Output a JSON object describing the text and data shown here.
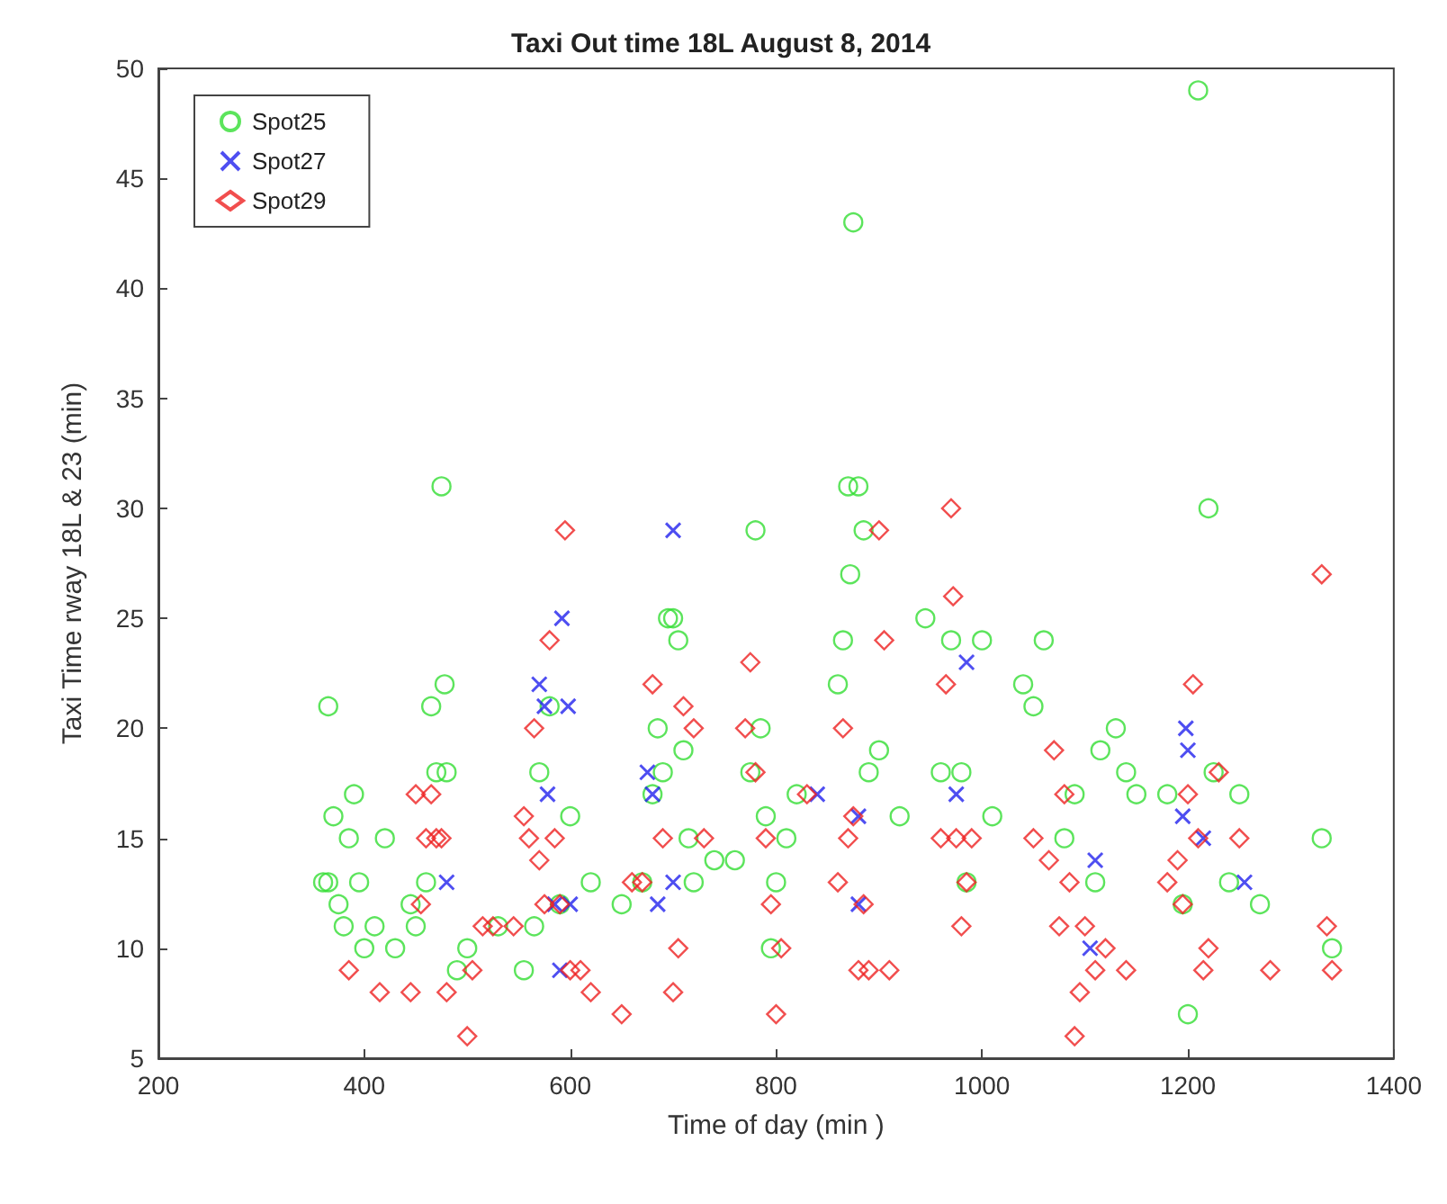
{
  "chart_data": {
    "type": "scatter",
    "title": "Taxi Out time 18L August 8, 2014",
    "xlabel": "Time of day (min )",
    "ylabel": "Taxi Time rway 18L & 23 (min)",
    "xlim": [
      200,
      1400
    ],
    "xticks": [
      200,
      400,
      600,
      800,
      1000,
      1200,
      1400
    ],
    "ylim": [
      5,
      50
    ],
    "yticks": [
      5,
      10,
      15,
      20,
      25,
      30,
      35,
      40,
      45,
      50
    ],
    "grid": false,
    "legend": "top left",
    "series": [
      {
        "name": "Spot25",
        "color": "#33dd33",
        "marker": "circle",
        "x": [
          360,
          365,
          365,
          370,
          375,
          380,
          385,
          390,
          395,
          400,
          410,
          420,
          430,
          445,
          450,
          460,
          465,
          470,
          475,
          478,
          480,
          490,
          500,
          530,
          555,
          565,
          570,
          580,
          590,
          600,
          620,
          650,
          670,
          680,
          685,
          690,
          695,
          700,
          705,
          710,
          715,
          720,
          740,
          760,
          775,
          780,
          785,
          790,
          795,
          800,
          810,
          820,
          860,
          865,
          870,
          872,
          875,
          880,
          885,
          890,
          900,
          920,
          945,
          960,
          970,
          980,
          985,
          1000,
          1010,
          1040,
          1050,
          1060,
          1080,
          1090,
          1110,
          1115,
          1130,
          1140,
          1150,
          1180,
          1195,
          1200,
          1210,
          1220,
          1225,
          1240,
          1250,
          1270,
          1330,
          1340
        ],
        "values": [
          13,
          13,
          21,
          16,
          12,
          11,
          15,
          17,
          13,
          10,
          11,
          15,
          10,
          12,
          11,
          13,
          21,
          18,
          31,
          22,
          18,
          9,
          10,
          11,
          9,
          11,
          18,
          21,
          12,
          16,
          13,
          12,
          13,
          17,
          20,
          18,
          25,
          25,
          24,
          19,
          15,
          13,
          14,
          14,
          18,
          29,
          20,
          16,
          10,
          13,
          15,
          17,
          22,
          24,
          31,
          27,
          43,
          31,
          29,
          18,
          19,
          16,
          25,
          18,
          24,
          18,
          13,
          24,
          16,
          22,
          21,
          24,
          15,
          17,
          13,
          19,
          20,
          18,
          17,
          17,
          12,
          7,
          49,
          30,
          18,
          13,
          17,
          12,
          15,
          10
        ]
      },
      {
        "name": "Spot27",
        "color": "#2222ee",
        "marker": "cross",
        "x": [
          480,
          570,
          575,
          578,
          585,
          590,
          592,
          598,
          600,
          675,
          680,
          685,
          700,
          700,
          840,
          880,
          880,
          975,
          985,
          1105,
          1110,
          1195,
          1198,
          1200,
          1215,
          1255
        ],
        "values": [
          13,
          22,
          21,
          17,
          12,
          9,
          25,
          21,
          12,
          18,
          17,
          12,
          29,
          13,
          17,
          12,
          16,
          17,
          23,
          10,
          14,
          16,
          20,
          19,
          15,
          13
        ]
      },
      {
        "name": "Spot29",
        "color": "#ee2222",
        "marker": "diamond",
        "x": [
          385,
          415,
          445,
          450,
          455,
          460,
          465,
          470,
          475,
          480,
          500,
          505,
          515,
          525,
          545,
          555,
          560,
          565,
          570,
          575,
          580,
          585,
          590,
          595,
          600,
          610,
          620,
          650,
          660,
          670,
          680,
          690,
          700,
          705,
          710,
          720,
          730,
          770,
          775,
          780,
          790,
          795,
          800,
          805,
          830,
          860,
          865,
          870,
          875,
          880,
          885,
          890,
          900,
          905,
          910,
          960,
          965,
          970,
          972,
          975,
          980,
          985,
          990,
          1050,
          1065,
          1070,
          1075,
          1080,
          1085,
          1090,
          1095,
          1100,
          1110,
          1120,
          1140,
          1180,
          1190,
          1195,
          1200,
          1205,
          1210,
          1215,
          1220,
          1230,
          1250,
          1280,
          1330,
          1335,
          1340
        ],
        "values": [
          9,
          8,
          8,
          17,
          12,
          15,
          17,
          15,
          15,
          8,
          6,
          9,
          11,
          11,
          11,
          16,
          15,
          20,
          14,
          12,
          24,
          15,
          12,
          29,
          9,
          9,
          8,
          7,
          13,
          13,
          22,
          15,
          8,
          10,
          21,
          20,
          15,
          20,
          23,
          18,
          15,
          12,
          7,
          10,
          17,
          13,
          20,
          15,
          16,
          9,
          12,
          9,
          29,
          24,
          9,
          15,
          22,
          30,
          26,
          15,
          11,
          13,
          15,
          15,
          14,
          19,
          11,
          17,
          13,
          6,
          8,
          11,
          9,
          10,
          9,
          13,
          14,
          12,
          17,
          22,
          15,
          9,
          10,
          18,
          15,
          9,
          27,
          11,
          9
        ]
      }
    ]
  }
}
